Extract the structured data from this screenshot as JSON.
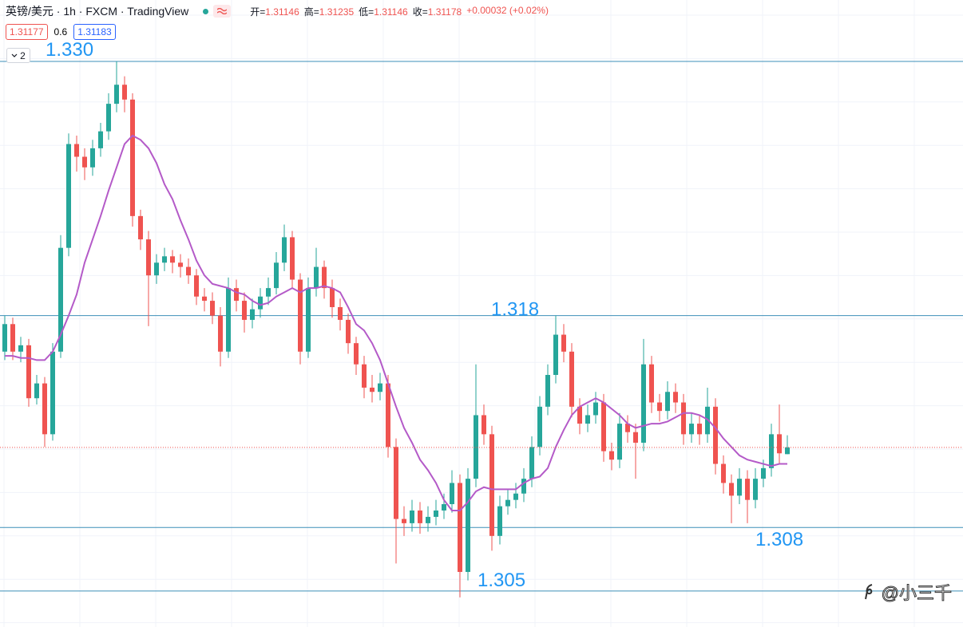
{
  "chart_data": {
    "type": "candlestick",
    "title": "英镑/美元 · 1h · FXCM · TradingView",
    "ohlc_labels": [
      "开=",
      "高=",
      "低=",
      "收="
    ],
    "change": "+0.00032 (+0.02%)",
    "bid": 1.31177,
    "spread": 0.6,
    "ask": 1.31183,
    "indicator_count": 2,
    "watermark": "@小三千",
    "up_color": "#26a69a",
    "down_color": "#ef5350",
    "ylim": [
      1.3033,
      1.3329
    ],
    "levels": [
      {
        "value": 1.33,
        "label": "1.330"
      },
      1.318,
      1.308,
      1.305
    ],
    "level_color": "#3d8fb8",
    "level_label_color": "#2196f3",
    "candles": {
      "open": [
        1.3163,
        1.3176,
        1.3163,
        1.3166,
        1.3141,
        1.3148,
        1.3124,
        1.3163,
        1.3212,
        1.3261,
        1.3255,
        1.325,
        1.3259,
        1.3267,
        1.328,
        1.3289,
        1.3282,
        1.3227,
        1.3216,
        1.3199,
        1.3205,
        1.3208,
        1.3205,
        1.3203,
        1.3199,
        1.3189,
        1.3187,
        1.318,
        1.3163,
        1.3193,
        1.3187,
        1.3178,
        1.3183,
        1.3189,
        1.3193,
        1.3205,
        1.3217,
        1.3197,
        1.3163,
        1.3193,
        1.3203,
        1.3193,
        1.3184,
        1.3178,
        1.3167,
        1.3157,
        1.3146,
        1.3144,
        1.3148,
        1.3118,
        1.3084,
        1.3082,
        1.3088,
        1.3082,
        1.3085,
        1.3088,
        1.3091,
        1.3101,
        1.3059,
        1.3103,
        1.3133,
        1.3124,
        1.3076,
        1.309,
        1.3093,
        1.3096,
        1.3103,
        1.3118,
        1.3137,
        1.3152,
        1.3171,
        1.3163,
        1.3137,
        1.3129,
        1.3133,
        1.3139,
        1.3116,
        1.3112,
        1.3129,
        1.3125,
        1.312,
        1.3157,
        1.3139,
        1.3135,
        1.3144,
        1.3139,
        1.3124,
        1.3129,
        1.3124,
        1.3137,
        1.311,
        1.3101,
        1.3095,
        1.3103,
        1.3093,
        1.3103,
        1.3108,
        1.3124,
        1.31146
      ],
      "high": [
        1.318,
        1.3179,
        1.317,
        1.3169,
        1.3152,
        1.3151,
        1.3167,
        1.3218,
        1.3266,
        1.3265,
        1.3259,
        1.3263,
        1.3271,
        1.3285,
        1.33,
        1.3293,
        1.3285,
        1.323,
        1.322,
        1.3209,
        1.3212,
        1.3211,
        1.3209,
        1.3207,
        1.3202,
        1.3193,
        1.3191,
        1.3184,
        1.3198,
        1.3197,
        1.3191,
        1.3188,
        1.3193,
        1.3198,
        1.321,
        1.3223,
        1.322,
        1.32,
        1.3198,
        1.3212,
        1.3206,
        1.3197,
        1.3188,
        1.3181,
        1.317,
        1.3161,
        1.3152,
        1.3153,
        1.3152,
        1.3122,
        1.309,
        1.3093,
        1.3092,
        1.309,
        1.3093,
        1.3096,
        1.3107,
        1.3105,
        1.3108,
        1.3157,
        1.3138,
        1.3128,
        1.3095,
        1.3098,
        1.3101,
        1.3108,
        1.3123,
        1.3142,
        1.3157,
        1.318,
        1.3176,
        1.3167,
        1.3141,
        1.3138,
        1.3144,
        1.3143,
        1.312,
        1.3134,
        1.3133,
        1.3129,
        1.3169,
        1.3161,
        1.3143,
        1.3149,
        1.3148,
        1.3143,
        1.3134,
        1.3133,
        1.3146,
        1.3141,
        1.3114,
        1.3105,
        1.3108,
        1.3107,
        1.3108,
        1.3112,
        1.3129,
        1.3138,
        1.31235
      ],
      "low": [
        1.3159,
        1.3159,
        1.3158,
        1.3137,
        1.3138,
        1.3118,
        1.3121,
        1.316,
        1.3208,
        1.3248,
        1.3244,
        1.3246,
        1.3255,
        1.3263,
        1.3276,
        1.3276,
        1.3222,
        1.3211,
        1.3175,
        1.3195,
        1.3201,
        1.32,
        1.3198,
        1.3195,
        1.3185,
        1.3182,
        1.3176,
        1.3156,
        1.316,
        1.3182,
        1.3172,
        1.3174,
        1.3179,
        1.3185,
        1.319,
        1.3201,
        1.3193,
        1.3157,
        1.316,
        1.3189,
        1.3188,
        1.3179,
        1.3173,
        1.3162,
        1.3152,
        1.3141,
        1.3139,
        1.314,
        1.3113,
        1.3063,
        1.3076,
        1.3078,
        1.3077,
        1.3078,
        1.3081,
        1.3084,
        1.3087,
        1.3047,
        1.3055,
        1.3099,
        1.3119,
        1.3069,
        1.3072,
        1.3086,
        1.3089,
        1.3092,
        1.3099,
        1.3114,
        1.3133,
        1.3148,
        1.3158,
        1.3132,
        1.3124,
        1.3125,
        1.3129,
        1.3111,
        1.3107,
        1.3108,
        1.312,
        1.3103,
        1.3116,
        1.3134,
        1.313,
        1.3131,
        1.3134,
        1.3119,
        1.312,
        1.3119,
        1.312,
        1.3105,
        1.3096,
        1.3082,
        1.3091,
        1.3082,
        1.3089,
        1.3099,
        1.3104,
        1.311,
        1.31146
      ],
      "close": [
        1.3176,
        1.3163,
        1.3166,
        1.3141,
        1.3148,
        1.3124,
        1.3163,
        1.3212,
        1.3261,
        1.3255,
        1.325,
        1.3259,
        1.3267,
        1.328,
        1.3289,
        1.3282,
        1.3227,
        1.3216,
        1.3199,
        1.3205,
        1.3208,
        1.3205,
        1.3203,
        1.3199,
        1.3189,
        1.3187,
        1.318,
        1.3163,
        1.3193,
        1.3187,
        1.3178,
        1.3183,
        1.3189,
        1.3193,
        1.3205,
        1.3217,
        1.3197,
        1.3163,
        1.3193,
        1.3203,
        1.3193,
        1.3184,
        1.3178,
        1.3167,
        1.3157,
        1.3146,
        1.3144,
        1.3148,
        1.3118,
        1.3084,
        1.3082,
        1.3088,
        1.3082,
        1.3085,
        1.3088,
        1.3091,
        1.3101,
        1.3059,
        1.3103,
        1.3133,
        1.3124,
        1.3076,
        1.309,
        1.3093,
        1.3096,
        1.3103,
        1.3118,
        1.3137,
        1.3152,
        1.3171,
        1.3163,
        1.3137,
        1.3129,
        1.3133,
        1.3139,
        1.3116,
        1.3112,
        1.3129,
        1.3125,
        1.312,
        1.3157,
        1.3139,
        1.3135,
        1.3144,
        1.3139,
        1.3124,
        1.3129,
        1.3124,
        1.3137,
        1.311,
        1.3101,
        1.3095,
        1.3103,
        1.3093,
        1.3103,
        1.3108,
        1.3124,
        1.3115,
        1.31178
      ]
    },
    "ma": {
      "color": "#b45ac8",
      "values": [
        1.3161,
        1.3161,
        1.316,
        1.316,
        1.3159,
        1.3159,
        1.3163,
        1.3171,
        1.318,
        1.319,
        1.3205,
        1.3216,
        1.3227,
        1.3239,
        1.325,
        1.3261,
        1.3265,
        1.3263,
        1.3259,
        1.3252,
        1.3242,
        1.3235,
        1.3225,
        1.3216,
        1.3206,
        1.3199,
        1.3195,
        1.3194,
        1.3193,
        1.3191,
        1.319,
        1.3187,
        1.3185,
        1.3186,
        1.3189,
        1.3191,
        1.3193,
        1.3191,
        1.3193,
        1.3193,
        1.3194,
        1.3193,
        1.3191,
        1.3184,
        1.3176,
        1.3173,
        1.3167,
        1.3159,
        1.3148,
        1.3137,
        1.3127,
        1.312,
        1.3112,
        1.3107,
        1.3101,
        1.3093,
        1.3088,
        1.3088,
        1.3092,
        1.3097,
        1.3099,
        1.3098,
        1.3098,
        1.3098,
        1.3098,
        1.3101,
        1.3103,
        1.3104,
        1.3108,
        1.3118,
        1.3126,
        1.3133,
        1.3137,
        1.3139,
        1.3141,
        1.3139,
        1.3136,
        1.3133,
        1.3129,
        1.3127,
        1.3128,
        1.3129,
        1.3129,
        1.313,
        1.3132,
        1.3134,
        1.3134,
        1.3133,
        1.3131,
        1.3127,
        1.3122,
        1.3118,
        1.3114,
        1.3112,
        1.3111,
        1.311,
        1.3109,
        1.311,
        1.311
      ]
    }
  }
}
